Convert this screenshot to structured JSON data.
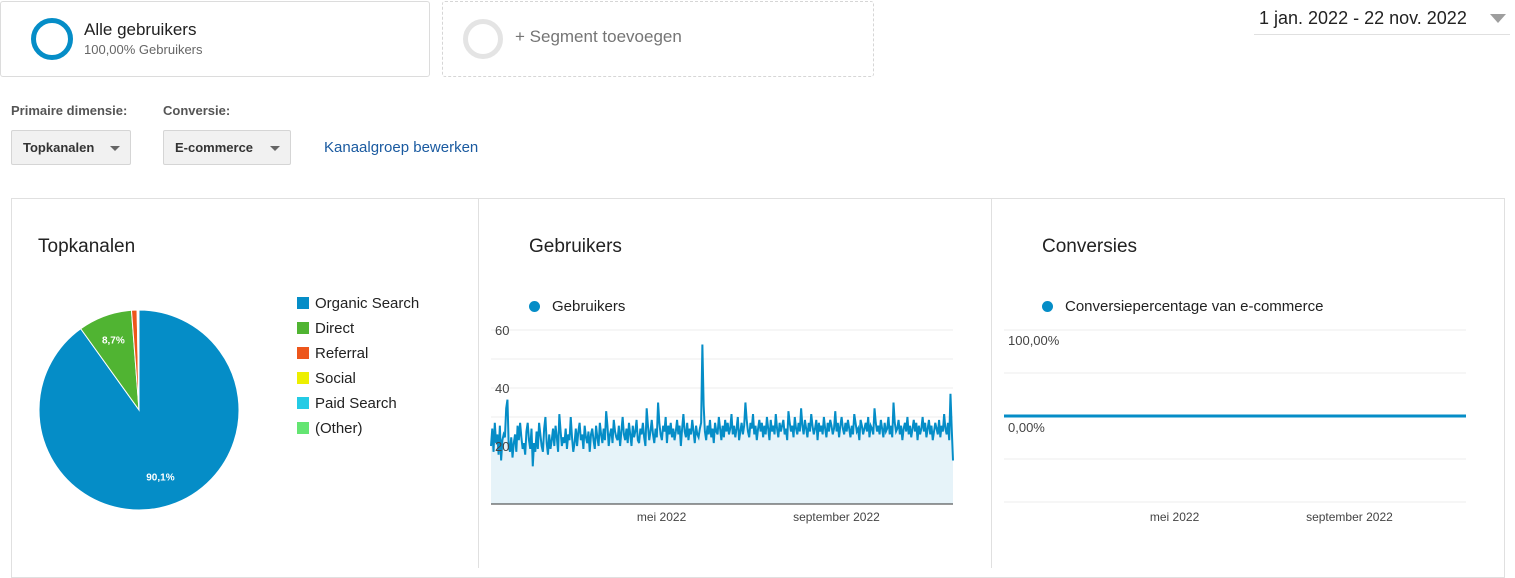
{
  "segments": {
    "active": {
      "title": "Alle gebruikers",
      "subtitle": "100,00% Gebruikers"
    },
    "add_label": "+ Segment toevoegen"
  },
  "date_range": "1 jan. 2022 - 22 nov. 2022",
  "controls": {
    "primary_dimension_label": "Primaire dimensie:",
    "primary_dimension_value": "Topkanalen",
    "conversion_label": "Conversie:",
    "conversion_value": "E-commerce",
    "edit_link": "Kanaalgroep bewerken"
  },
  "colors": {
    "organic": "#058dc7",
    "direct": "#50b432",
    "referral": "#ed561b",
    "social": "#edef00",
    "paid": "#24cbe5",
    "other": "#64e572"
  },
  "panels": {
    "topkanalen_title": "Topkanalen",
    "gebruikers_title": "Gebruikers",
    "conversies_title": "Conversies"
  },
  "chart_data": [
    {
      "type": "pie",
      "title": "Topkanalen",
      "slices": [
        {
          "name": "Organic Search",
          "value": 90.1,
          "label": "90,1%",
          "color": "#058dc7"
        },
        {
          "name": "Direct",
          "value": 8.7,
          "label": "8,7%",
          "color": "#50b432"
        },
        {
          "name": "Referral",
          "value": 0.9,
          "label": "",
          "color": "#ed561b"
        },
        {
          "name": "Social",
          "value": 0.1,
          "label": "",
          "color": "#edef00"
        },
        {
          "name": "Paid Search",
          "value": 0.1,
          "label": "",
          "color": "#24cbe5"
        },
        {
          "name": "(Other)",
          "value": 0.1,
          "label": "",
          "color": "#64e572"
        }
      ],
      "legend": "right"
    },
    {
      "type": "area",
      "title": "Gebruikers",
      "series": [
        {
          "name": "Gebruikers",
          "color": "#058dc7",
          "values": [
            20,
            26,
            18,
            28,
            21,
            24,
            17,
            27,
            15,
            22,
            24,
            23,
            33,
            36,
            20,
            18,
            23,
            16,
            21,
            24,
            18,
            27,
            22,
            28,
            23,
            19,
            21,
            17,
            25,
            28,
            22,
            19,
            26,
            13,
            21,
            18,
            25,
            19,
            28,
            24,
            20,
            18,
            26,
            30,
            21,
            17,
            24,
            19,
            22,
            26,
            20,
            27,
            23,
            18,
            31,
            25,
            20,
            23,
            21,
            26,
            19,
            24,
            22,
            30,
            23,
            18,
            21,
            26,
            20,
            25,
            28,
            22,
            24,
            19,
            27,
            23,
            21,
            25,
            18,
            24,
            26,
            22,
            19,
            27,
            23,
            20,
            28,
            24,
            21,
            26,
            22,
            32,
            27,
            20,
            24,
            26,
            21,
            29,
            25,
            23,
            22,
            27,
            20,
            25,
            30,
            24,
            22,
            26,
            21,
            28,
            24,
            20,
            27,
            23,
            25,
            29,
            22,
            21,
            26,
            24,
            28,
            23,
            20,
            33,
            27,
            22,
            25,
            29,
            24,
            21,
            26,
            23,
            35,
            28,
            24,
            22,
            27,
            25,
            30,
            21,
            27,
            24,
            28,
            23,
            26,
            22,
            25,
            29,
            24,
            27,
            20,
            26,
            31,
            25,
            23,
            28,
            22,
            26,
            24,
            29,
            25,
            21,
            27,
            24,
            23,
            26,
            28,
            55,
            34,
            25,
            22,
            27,
            24,
            29,
            23,
            26,
            21,
            28,
            25,
            24,
            30,
            26,
            22,
            27,
            23,
            29,
            25,
            28,
            24,
            26,
            31,
            24,
            27,
            23,
            26,
            30,
            22,
            25,
            28,
            24,
            27,
            35,
            29,
            25,
            23,
            28,
            26,
            31,
            24,
            27,
            22,
            26,
            29,
            25,
            28,
            23,
            27,
            24,
            30,
            26,
            22,
            29,
            25,
            27,
            24,
            31,
            26,
            23,
            28,
            25,
            27,
            29,
            24,
            26,
            22,
            32,
            28,
            25,
            27,
            23,
            30,
            26,
            24,
            28,
            25,
            33,
            27,
            24,
            29,
            26,
            23,
            28,
            25,
            31,
            27,
            24,
            26,
            29,
            22,
            28,
            25,
            27,
            24,
            30,
            26,
            23,
            28,
            25,
            29,
            27,
            24,
            26,
            32,
            25,
            28,
            23,
            27,
            30,
            26,
            24,
            28,
            25,
            29,
            26,
            23,
            27,
            24,
            31,
            28,
            25,
            26,
            22,
            29,
            27,
            24,
            26,
            28,
            25,
            30,
            23,
            27,
            26,
            24,
            33,
            28,
            25,
            27,
            24,
            29,
            26,
            23,
            28,
            25,
            26,
            30,
            24,
            27,
            23,
            35,
            28,
            25,
            26,
            29,
            24,
            27,
            22,
            26,
            28,
            25,
            30,
            24,
            27,
            23,
            26,
            29,
            25,
            28,
            22,
            27,
            24,
            26,
            30,
            25,
            28,
            23,
            26,
            29,
            24,
            27,
            22,
            25,
            28,
            26,
            24,
            29,
            23,
            27,
            25,
            31,
            26,
            24,
            28,
            22,
            38,
            26,
            15
          ],
          "x_start": "1 jan. 2022",
          "x_end": "22 nov. 2022"
        }
      ],
      "x_tick_labels": [
        "mei 2022",
        "september 2022"
      ],
      "y_tick_labels": [
        "20",
        "40",
        "60"
      ],
      "ylim": [
        0,
        60
      ],
      "legend": "top-left"
    },
    {
      "type": "line",
      "title": "Conversies",
      "series": [
        {
          "name": "Conversiepercentage van e-commerce",
          "color": "#058dc7",
          "values": [
            0,
            0,
            0,
            0,
            0,
            0,
            0,
            0,
            0,
            0,
            0
          ]
        }
      ],
      "x_tick_labels": [
        "mei 2022",
        "september 2022"
      ],
      "y_tick_labels": [
        "100,00%",
        "0,00%"
      ],
      "legend": "top-left"
    }
  ]
}
